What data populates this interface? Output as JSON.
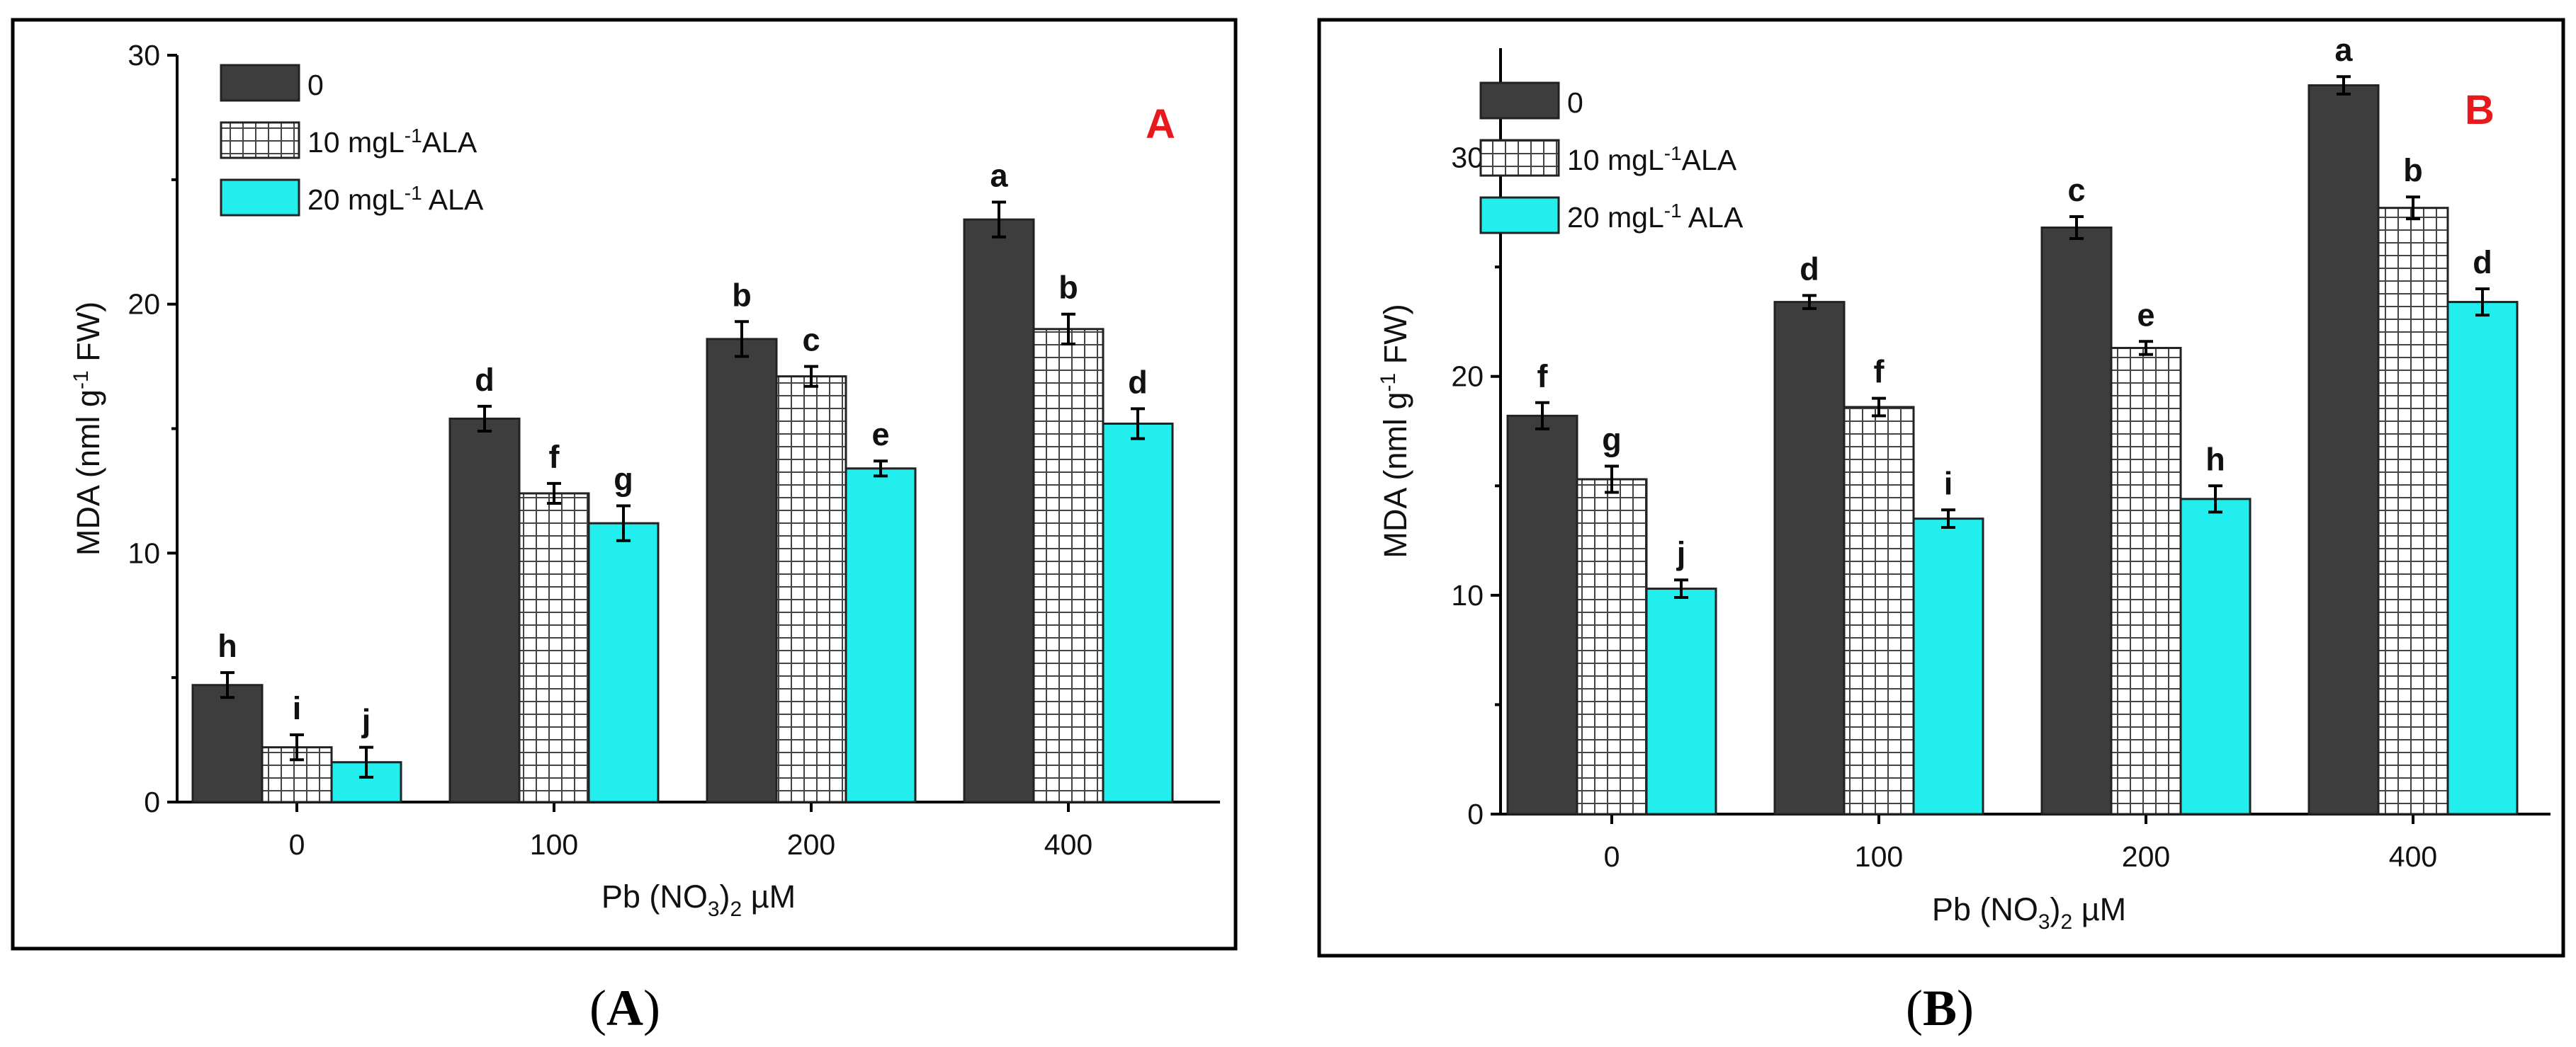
{
  "colors": {
    "series_0": "#3d3d3d",
    "series_10": "#ffffff",
    "series_20": "#22eeee",
    "hatch": "#444444",
    "panel_letter": "#e8191c"
  },
  "chart_data": [
    {
      "type": "bar",
      "panel_label": "A",
      "caption_open": "(",
      "caption_letter": "A",
      "caption_close": ")",
      "categories": [
        "0",
        "100",
        "200",
        "400"
      ],
      "xlabel": {
        "main": "Pb (NO",
        "sub": "3",
        "rest": ")",
        "sub2": "2",
        "unit": " µM"
      },
      "ylabel": {
        "main": "MDA (nml g",
        "sup": "-1",
        "rest": " FW)"
      },
      "ylim": [
        0,
        30
      ],
      "yticks": [
        0,
        10,
        20,
        30
      ],
      "legend_position": "top-left",
      "series": [
        {
          "name": "0",
          "name_main": "0",
          "name_sup": "",
          "name_rest": "",
          "pattern": "solid-dark",
          "values": [
            4.7,
            15.4,
            18.6,
            23.4
          ],
          "errors": [
            0.5,
            0.5,
            0.7,
            0.7
          ],
          "letters": [
            "h",
            "d",
            "b",
            "a"
          ]
        },
        {
          "name": "10 mgL-1ALA",
          "name_main": "10 mgL",
          "name_sup": "-1",
          "name_rest": "ALA",
          "pattern": "grid",
          "values": [
            2.2,
            12.4,
            17.1,
            19.0
          ],
          "errors": [
            0.5,
            0.4,
            0.4,
            0.6
          ],
          "letters": [
            "i",
            "f",
            "c",
            "b"
          ]
        },
        {
          "name": "20 mgL-1 ALA",
          "name_main": "20 mgL",
          "name_sup": "-1",
          "name_rest": " ALA",
          "pattern": "solid-cyan",
          "values": [
            1.6,
            11.2,
            13.4,
            15.2
          ],
          "errors": [
            0.6,
            0.7,
            0.3,
            0.6
          ],
          "letters": [
            "j",
            "g",
            "e",
            "d"
          ]
        }
      ]
    },
    {
      "type": "bar",
      "panel_label": "B",
      "caption_open": "(",
      "caption_letter": "B",
      "caption_close": ")",
      "categories": [
        "0",
        "100",
        "200",
        "400"
      ],
      "xlabel": {
        "main": "Pb (NO",
        "sub": "3",
        "rest": ")",
        "sub2": "2",
        "unit": " µM"
      },
      "ylabel": {
        "main": "MDA (nml g",
        "sup": "-1",
        "rest": " FW)"
      },
      "ylim": [
        0,
        35
      ],
      "yticks": [
        0,
        10,
        20,
        30
      ],
      "legend_position": "top-left",
      "series": [
        {
          "name": "0",
          "name_main": "0",
          "name_sup": "",
          "name_rest": "",
          "pattern": "solid-dark",
          "values": [
            18.2,
            23.4,
            26.8,
            33.3
          ],
          "errors": [
            0.6,
            0.3,
            0.5,
            0.4
          ],
          "letters": [
            "f",
            "d",
            "c",
            "a"
          ]
        },
        {
          "name": "10 mgL-1ALA",
          "name_main": "10 mgL",
          "name_sup": "-1",
          "name_rest": "ALA",
          "pattern": "grid",
          "values": [
            15.3,
            18.6,
            21.3,
            27.7
          ],
          "errors": [
            0.6,
            0.4,
            0.3,
            0.5
          ],
          "letters": [
            "g",
            "f",
            "e",
            "b"
          ]
        },
        {
          "name": "20 mgL-1 ALA",
          "name_main": "20 mgL",
          "name_sup": "-1",
          "name_rest": " ALA",
          "pattern": "solid-cyan",
          "values": [
            10.3,
            13.5,
            14.4,
            23.4
          ],
          "errors": [
            0.4,
            0.4,
            0.6,
            0.6
          ],
          "letters": [
            "j",
            "i",
            "h",
            "d"
          ]
        }
      ]
    }
  ]
}
